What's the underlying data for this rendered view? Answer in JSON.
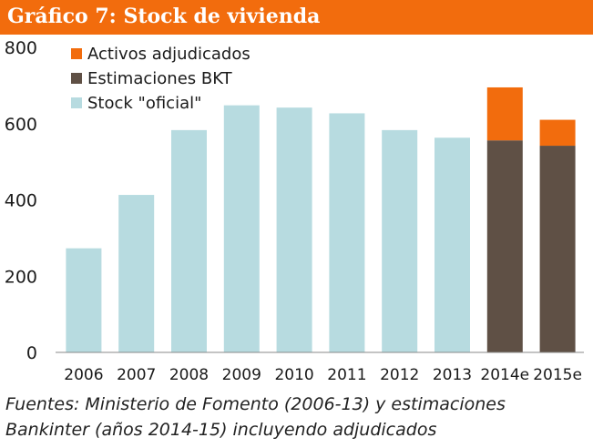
{
  "chart_data": {
    "type": "bar",
    "stacked": true,
    "title": "Gráfico 7: Stock de vivienda",
    "categories": [
      "2006",
      "2007",
      "2008",
      "2009",
      "2010",
      "2011",
      "2012",
      "2013",
      "2014e",
      "2015e"
    ],
    "series": [
      {
        "name": "Stock \"oficial\"",
        "color": "#b7dbe0",
        "values": [
          273,
          413,
          583,
          648,
          642,
          627,
          583,
          563,
          0,
          0
        ]
      },
      {
        "name": "Estimaciones BKT",
        "color": "#5f5045",
        "values": [
          0,
          0,
          0,
          0,
          0,
          0,
          0,
          0,
          556,
          542
        ]
      },
      {
        "name": "Activos adjudicados",
        "color": "#f26c0d",
        "values": [
          0,
          0,
          0,
          0,
          0,
          0,
          0,
          0,
          139,
          68
        ]
      }
    ],
    "legend_order": [
      "Activos adjudicados",
      "Estimaciones BKT",
      "Stock \"oficial\""
    ],
    "legend_position": "top-left",
    "ylim": [
      0,
      800
    ],
    "yticks": [
      0,
      200,
      400,
      600,
      800
    ],
    "xlabel": "",
    "ylabel": ""
  },
  "footer": {
    "line1": "Fuentes: Ministerio de Fomento (2006-13) y estimaciones",
    "line2": "Bankinter (años 2014-15) incluyendo adjudicados"
  }
}
